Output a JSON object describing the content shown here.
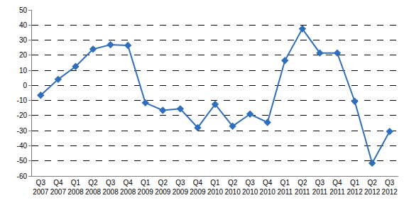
{
  "chart_data": {
    "type": "line",
    "categories": [
      "Q3 2007",
      "Q4 2007",
      "Q1 2008",
      "Q2 2008",
      "Q3 2008",
      "Q4 2008",
      "Q1 2009",
      "Q2 2009",
      "Q3 2009",
      "Q4 2009",
      "Q1 2010",
      "Q2 2010",
      "Q3 2010",
      "Q4 2010",
      "Q1 2011",
      "Q2 2011",
      "Q3 2011",
      "Q4 2011",
      "Q1 2012",
      "Q2 2012",
      "Q3 2012"
    ],
    "values": [
      -6.5,
      4,
      12.5,
      24,
      27,
      26.5,
      -11.5,
      -16.5,
      -15.5,
      -28,
      -12.5,
      -27,
      -19,
      -24.5,
      16.5,
      37.5,
      21.5,
      21.5,
      -10.5,
      -51.5,
      -30.5
    ],
    "color": "#2f6eba",
    "marker": "diamond",
    "ylim": [
      -60,
      50
    ],
    "yticks": [
      -60,
      -50,
      -40,
      -30,
      -20,
      -10,
      0,
      10,
      20,
      30,
      40,
      50
    ],
    "grid": true
  }
}
